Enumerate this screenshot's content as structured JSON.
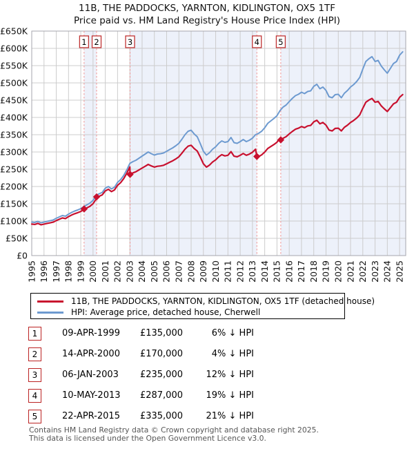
{
  "chart_data": {
    "type": "line",
    "title_line1": "11B, THE PADDOCKS, YARNTON, KIDLINGTON, OX5 1TF",
    "title_line2": "Price paid vs. HM Land Registry's House Price Index (HPI)",
    "x_axis": {
      "label": "",
      "range": [
        1995,
        2025.5
      ],
      "ticks": [
        1995,
        1996,
        1997,
        1998,
        1999,
        2000,
        2001,
        2002,
        2003,
        2004,
        2005,
        2006,
        2007,
        2008,
        2009,
        2010,
        2011,
        2012,
        2013,
        2014,
        2015,
        2016,
        2017,
        2018,
        2019,
        2020,
        2021,
        2022,
        2023,
        2024,
        2025
      ]
    },
    "y_axis": {
      "label": "",
      "range": [
        0,
        650
      ],
      "tick_values": [
        0,
        50,
        100,
        150,
        200,
        250,
        300,
        350,
        400,
        450,
        500,
        550,
        600,
        650
      ],
      "tick_labels": [
        "£0",
        "£50K",
        "£100K",
        "£150K",
        "£200K",
        "£250K",
        "£300K",
        "£350K",
        "£400K",
        "£450K",
        "£500K",
        "£550K",
        "£600K",
        "£650K"
      ]
    },
    "grid": true,
    "grid_color": "#cccccc",
    "band_color": "#edf1fa",
    "dash_color": "#ef9494",
    "bands": [
      [
        1999.27,
        2000.29
      ],
      [
        2003.02,
        2013.36
      ],
      [
        2015.31,
        2025.5
      ]
    ],
    "sales": [
      {
        "label": "1",
        "x": 1999.27,
        "price_k": 135
      },
      {
        "label": "2",
        "x": 2000.29,
        "price_k": 170
      },
      {
        "label": "3",
        "x": 2003.02,
        "price_k": 235
      },
      {
        "label": "4",
        "x": 2013.36,
        "price_k": 287
      },
      {
        "label": "5",
        "x": 2015.31,
        "price_k": 335
      }
    ],
    "series": [
      {
        "name": "11B, THE PADDOCKS, YARNTON, KIDLINGTON, OX5 1TF (detached house)",
        "color": "#c8102e",
        "width": 2.2,
        "merge_sales": true,
        "x0": 1995,
        "dx": 0.25,
        "values": [
          91.2,
          90.2,
          93.1,
          89.3,
          91.2,
          93.1,
          94.9,
          96.8,
          101.5,
          105.3,
          109,
          107.2,
          112.8,
          117.5,
          121.3,
          124.1,
          127.8,
          133.5,
          138.2,
          142.9,
          150.4,
          163.6,
          171.8,
          175.7,
          187.2,
          192,
          185.3,
          190.1,
          203.5,
          211.2,
          222.7,
          238.1,
          256.3,
          239.4,
          242.9,
          248.2,
          253.4,
          258.7,
          264,
          259.6,
          256.1,
          258.7,
          259.6,
          261.4,
          265.8,
          270.2,
          274.6,
          279.8,
          286,
          296.6,
          308,
          316.8,
          319.4,
          309.8,
          302.7,
          285.1,
          265.8,
          256.1,
          262.2,
          271,
          277.2,
          286,
          292.2,
          288.6,
          290.4,
          301,
          287.8,
          286,
          290.4,
          295.7,
          290.4,
          293.9,
          299.2,
          308,
          286.7,
          291.6,
          299.7,
          310.2,
          315.9,
          321.6,
          328.1,
          340.2,
          339.7,
          344.4,
          352.3,
          359.5,
          365.8,
          368.9,
          373.7,
          370.5,
          375.3,
          376.8,
          387.1,
          391.8,
          381.6,
          385.5,
          377.6,
          363.4,
          361,
          368.1,
          368.9,
          361,
          371.3,
          377.6,
          385.5,
          391.1,
          398.2,
          407.6,
          426.6,
          444,
          450.3,
          455,
          444,
          446.4,
          433.7,
          425,
          417.1,
          428.2,
          439.2,
          444,
          458.2,
          466.1
        ]
      },
      {
        "name": "HPI: Average price, detached house, Cherwell",
        "color": "#6d9ad0",
        "width": 2,
        "merge_sales": false,
        "x0": 1995,
        "dx": 0.25,
        "values": [
          97,
          96,
          99,
          95,
          97,
          99,
          101,
          103,
          108,
          112,
          116,
          114,
          120,
          125,
          129,
          132,
          136,
          142,
          147,
          152,
          160,
          174,
          179,
          183,
          195,
          200,
          193,
          198,
          212,
          220,
          232,
          248,
          267,
          272,
          276,
          282,
          288,
          294,
          300,
          295,
          291,
          294,
          295,
          297,
          302,
          307,
          312,
          318,
          325,
          337,
          350,
          360,
          363,
          352,
          344,
          324,
          302,
          291,
          298,
          308,
          315,
          325,
          332,
          328,
          330,
          342,
          327,
          325,
          330,
          336,
          330,
          334,
          340,
          350,
          354,
          360,
          370,
          383,
          390,
          397,
          405,
          420,
          430,
          436,
          446,
          455,
          463,
          467,
          473,
          469,
          475,
          477,
          490,
          496,
          483,
          488,
          478,
          460,
          457,
          466,
          467,
          457,
          470,
          478,
          488,
          495,
          504,
          516,
          540,
          562,
          570,
          576,
          562,
          565,
          549,
          538,
          528,
          542,
          556,
          562,
          580,
          590
        ]
      }
    ]
  },
  "legend": {
    "items": [
      {
        "label": "11B, THE PADDOCKS, YARNTON, KIDLINGTON, OX5 1TF (detached house)",
        "color": "#c8102e"
      },
      {
        "label": "HPI: Average price, detached house, Cherwell",
        "color": "#6d9ad0"
      }
    ]
  },
  "table": {
    "rows": [
      {
        "num": "1",
        "date": "09-APR-1999",
        "price": "£135,000",
        "hpi_diff": "6% ↓ HPI"
      },
      {
        "num": "2",
        "date": "14-APR-2000",
        "price": "£170,000",
        "hpi_diff": "4% ↓ HPI"
      },
      {
        "num": "3",
        "date": "06-JAN-2003",
        "price": "£235,000",
        "hpi_diff": "12% ↓ HPI"
      },
      {
        "num": "4",
        "date": "10-MAY-2013",
        "price": "£287,000",
        "hpi_diff": "19% ↓ HPI"
      },
      {
        "num": "5",
        "date": "22-APR-2015",
        "price": "£335,000",
        "hpi_diff": "21% ↓ HPI"
      }
    ]
  },
  "footer": {
    "line1": "Contains HM Land Registry data © Crown copyright and database right 2025.",
    "line2": "This data is licensed under the Open Government Licence v3.0."
  }
}
